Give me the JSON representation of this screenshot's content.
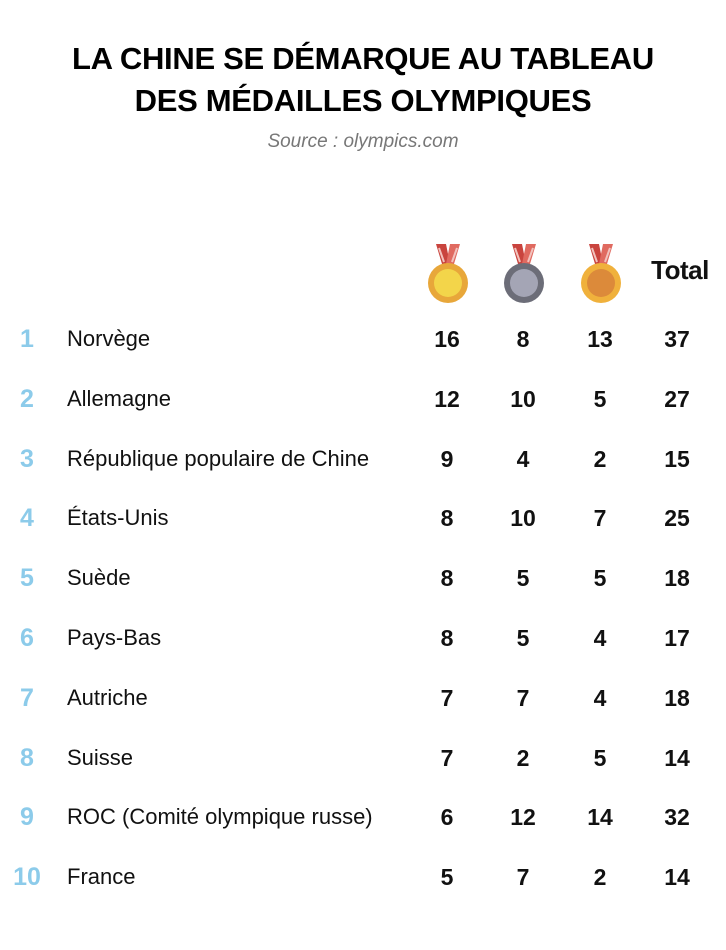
{
  "title_line1": "LA CHINE SE DÉMARQUE AU TABLEAU",
  "title_line2": "DES MÉDAILLES OLYMPIQUES",
  "source": "Source : olympics.com",
  "chart_data": {
    "type": "table",
    "columns": [
      "",
      "",
      "gold-medal-icon",
      "silver-medal-icon",
      "bronze-medal-icon",
      "Total"
    ],
    "total_label": "Total",
    "medal_icons": [
      {
        "name": "gold-medal-icon",
        "color": "#f0c63e"
      },
      {
        "name": "silver-medal-icon",
        "color": "#8e8fa0"
      },
      {
        "name": "bronze-medal-icon",
        "color": "#e09a3a"
      }
    ],
    "rank_color": "#8ccbea",
    "rows": [
      {
        "rank": "1",
        "country": "Norvège",
        "gold": "16",
        "silver": "8",
        "bronze": "13",
        "total": "37"
      },
      {
        "rank": "2",
        "country": "Allemagne",
        "gold": "12",
        "silver": "10",
        "bronze": "5",
        "total": "27"
      },
      {
        "rank": "3",
        "country": "République populaire de Chine",
        "gold": "9",
        "silver": "4",
        "bronze": "2",
        "total": "15"
      },
      {
        "rank": "4",
        "country": "États-Unis",
        "gold": "8",
        "silver": "10",
        "bronze": "7",
        "total": "25"
      },
      {
        "rank": "5",
        "country": "Suède",
        "gold": "8",
        "silver": "5",
        "bronze": "5",
        "total": "18"
      },
      {
        "rank": "6",
        "country": "Pays-Bas",
        "gold": "8",
        "silver": "5",
        "bronze": "4",
        "total": "17"
      },
      {
        "rank": "7",
        "country": "Autriche",
        "gold": "7",
        "silver": "7",
        "bronze": "4",
        "total": "18"
      },
      {
        "rank": "8",
        "country": "Suisse",
        "gold": "7",
        "silver": "2",
        "bronze": "5",
        "total": "14"
      },
      {
        "rank": "9",
        "country": "ROC (Comité olympique russe)",
        "gold": "6",
        "silver": "12",
        "bronze": "14",
        "total": "32"
      },
      {
        "rank": "10",
        "country": "France",
        "gold": "5",
        "silver": "7",
        "bronze": "2",
        "total": "14"
      }
    ]
  }
}
